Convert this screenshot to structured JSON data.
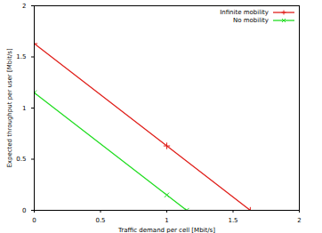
{
  "chart_data": {
    "type": "line",
    "x_label": "Traffic demand per cell [Mbit/s]",
    "y_label": "Expected throughput per user [Mbit/s]",
    "xlim": [
      0,
      2
    ],
    "xticks": [
      0,
      0.5,
      1,
      1.5,
      2
    ],
    "ylim": [
      0,
      2
    ],
    "yticks": [
      0,
      0.5,
      1,
      1.5,
      2
    ],
    "grid": false,
    "legend": "top-right",
    "series": [
      {
        "name": "Infinite mobility",
        "color": "#e0201b",
        "marker": "plus",
        "x": [
          0,
          1,
          1.63
        ],
        "values": [
          1.63,
          0.63,
          0
        ]
      },
      {
        "name": "No mobility",
        "color": "#22dd22",
        "marker": "times",
        "x": [
          0,
          1,
          1.15
        ],
        "values": [
          1.15,
          0.15,
          0
        ]
      }
    ]
  }
}
